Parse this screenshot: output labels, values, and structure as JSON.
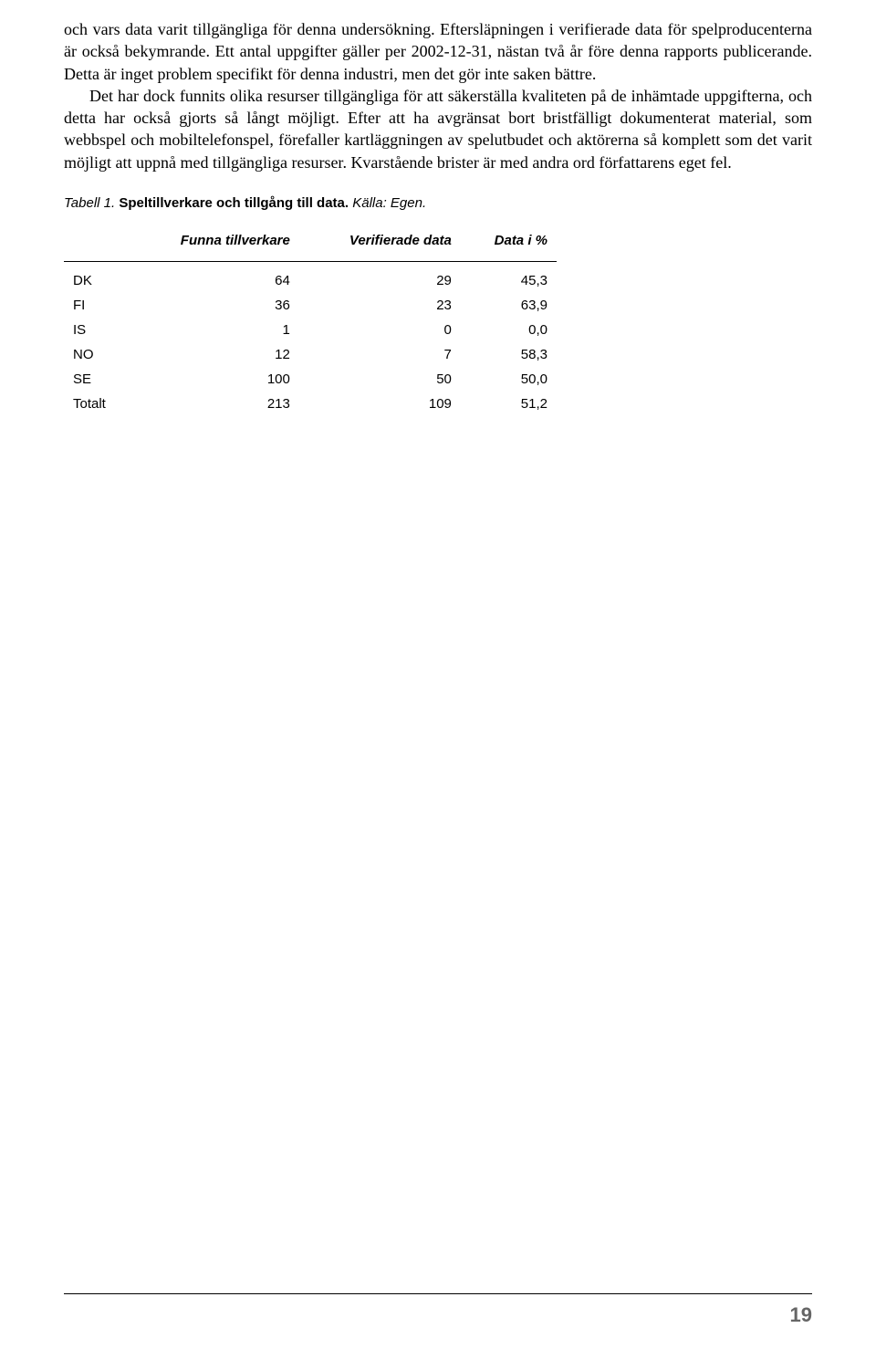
{
  "paragraphs": {
    "p1": "och vars data varit tillgängliga för denna undersökning. Eftersläpningen i verifierade data för spelproducenterna är också bekymrande. Ett antal uppgifter gäller per 2002-12-31, nästan två år före denna rapports publicerande. Detta är inget problem specifikt för denna industri, men det gör inte saken bättre.",
    "p2": "Det har dock funnits olika resurser tillgängliga för att säkerställa kvaliteten på de inhämtade uppgifterna, och detta har också gjorts så långt möjligt. Efter att ha avgränsat bort bristfälligt dokumenterat material, som webbspel och mobiltelefonspel, förefaller kartläggningen av spelutbudet och aktörerna så komplett som det varit möjligt att uppnå med tillgängliga resurser. Kvarstående brister är med andra ord författarens eget fel."
  },
  "table_caption": {
    "label": "Tabell 1. ",
    "title": "Speltillverkare och tillgång till data.",
    "source": " Källa: Egen."
  },
  "table": {
    "columns": [
      "",
      "Funna tillverkare",
      "Verifierade data",
      "Data i %"
    ],
    "rows": [
      [
        "DK",
        "64",
        "29",
        "45,3"
      ],
      [
        "FI",
        "36",
        "23",
        "63,9"
      ],
      [
        "IS",
        "1",
        "0",
        "0,0"
      ],
      [
        "NO",
        "12",
        "7",
        "58,3"
      ],
      [
        "SE",
        "100",
        "50",
        "50,0"
      ],
      [
        "Totalt",
        "213",
        "109",
        "51,2"
      ]
    ],
    "col_widths": [
      "70px",
      "180px",
      "150px",
      "140px"
    ]
  },
  "page_number": "19",
  "colors": {
    "text": "#000000",
    "page_number": "#666666",
    "background": "#ffffff",
    "border": "#000000"
  },
  "fonts": {
    "body": "Georgia, Times New Roman, serif",
    "sans": "Arial, Helvetica, sans-serif",
    "body_size": 18,
    "table_size": 15,
    "caption_size": 15,
    "page_number_size": 22
  }
}
